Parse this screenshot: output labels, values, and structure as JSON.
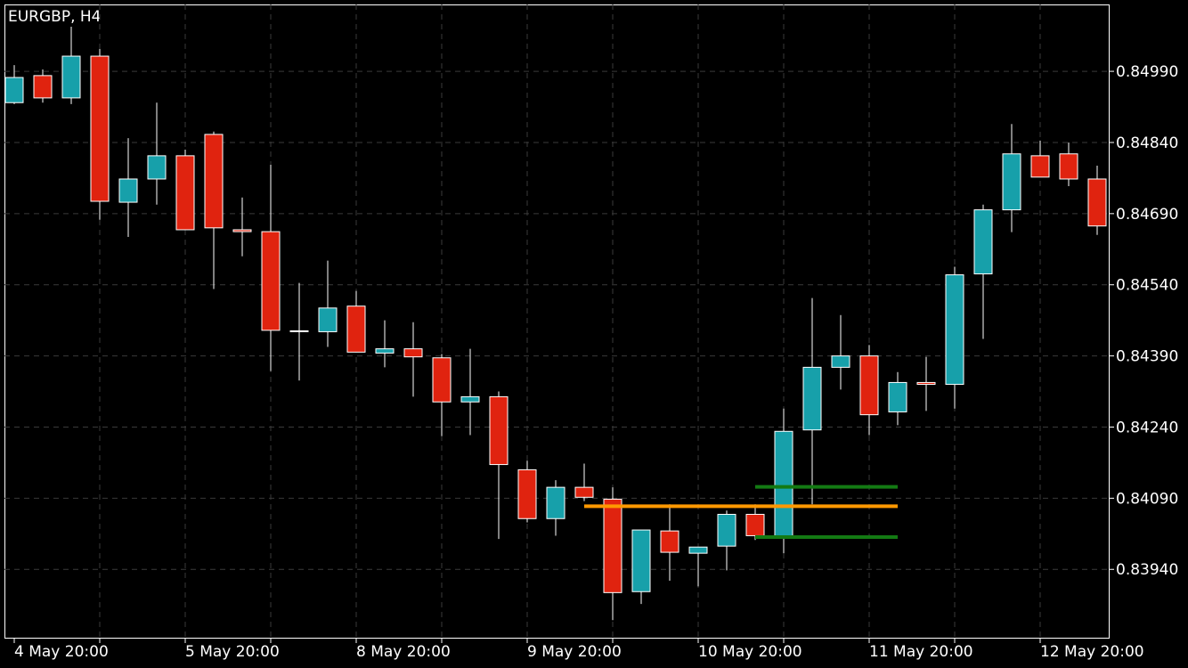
{
  "chart_data": {
    "type": "candlestick",
    "title": "EURGBP, H4",
    "categories": [
      "4 May 20:00",
      null,
      null,
      null,
      null,
      null,
      "5 May 20:00",
      null,
      null,
      null,
      null,
      null,
      "8 May 20:00",
      null,
      null,
      null,
      null,
      null,
      "9 May 20:00",
      null,
      null,
      null,
      null,
      null,
      "10 May 20:00",
      null,
      null,
      null,
      null,
      null,
      "11 May 20:00",
      null,
      null,
      null,
      null,
      null,
      "12 May 20:00",
      null,
      null
    ],
    "open": [
      0.84924,
      0.84981,
      0.84934,
      0.85022,
      0.84714,
      0.84763,
      0.84812,
      0.84857,
      0.84656,
      0.84652,
      0.84443,
      0.84441,
      0.84495,
      0.84396,
      0.84405,
      0.84386,
      0.84293,
      0.84304,
      0.8415,
      0.84047,
      0.84113,
      0.84088,
      0.83893,
      0.84021,
      0.83974,
      0.83989,
      0.84056,
      0.84009,
      0.84234,
      0.84366,
      0.8439,
      0.84272,
      0.84334,
      0.8433,
      0.84563,
      0.84698,
      0.84812,
      0.84816,
      0.84763
    ],
    "high": [
      0.85003,
      0.84994,
      0.85084,
      0.85037,
      0.84849,
      0.84924,
      0.84825,
      0.84863,
      0.84724,
      0.84793,
      0.84544,
      0.84591,
      0.84527,
      0.84465,
      0.84461,
      0.84394,
      0.84405,
      0.84315,
      0.84169,
      0.84128,
      0.84163,
      0.84113,
      0.84023,
      0.84077,
      0.83987,
      0.84064,
      0.84077,
      0.84279,
      0.84512,
      0.84476,
      0.84413,
      0.84356,
      0.84388,
      0.84578,
      0.84709,
      0.84879,
      0.84844,
      0.8484,
      0.84791
    ],
    "low": [
      0.84921,
      0.84924,
      0.84921,
      0.84677,
      0.84641,
      0.84709,
      0.84656,
      0.84531,
      0.846,
      0.84358,
      0.84338,
      0.84409,
      0.84398,
      0.84366,
      0.84304,
      0.84221,
      0.84223,
      0.84004,
      0.84039,
      0.84011,
      0.84084,
      0.83833,
      0.83867,
      0.83916,
      0.83904,
      0.83938,
      0.84002,
      0.83974,
      0.84077,
      0.84319,
      0.84223,
      0.84244,
      0.84274,
      0.84279,
      0.84426,
      0.84651,
      0.84767,
      0.84748,
      0.84645
    ],
    "close": [
      0.84977,
      0.84934,
      0.85022,
      0.84716,
      0.84763,
      0.84812,
      0.84656,
      0.8466,
      0.84652,
      0.84444,
      0.84442,
      0.84491,
      0.84398,
      0.84405,
      0.84388,
      0.84293,
      0.84304,
      0.84161,
      0.84047,
      0.84113,
      0.84092,
      0.83891,
      0.84023,
      0.83976,
      0.83987,
      0.84056,
      0.84011,
      0.84231,
      0.84366,
      0.8439,
      0.84266,
      0.84334,
      0.8433,
      0.84561,
      0.84698,
      0.84816,
      0.84767,
      0.84763,
      0.84664
    ],
    "up_color": "#17a0aa",
    "down_color": "#e0230f",
    "levels": [
      {
        "value": 0.84073,
        "color": "#ff9800",
        "from": 20,
        "to": 31
      },
      {
        "value": 0.84114,
        "color": "#137a13",
        "from": 26,
        "to": 31
      },
      {
        "value": 0.84008,
        "color": "#137a13",
        "from": 26,
        "to": 31
      }
    ],
    "ylim": [
      0.83794,
      0.85131
    ],
    "yticks": [
      {
        "value": 0.8394,
        "label": "0.83940"
      },
      {
        "value": 0.8409,
        "label": "0.84090"
      },
      {
        "value": 0.8424,
        "label": "0.84240"
      },
      {
        "value": 0.8439,
        "label": "0.84390"
      },
      {
        "value": 0.8454,
        "label": "0.84540"
      },
      {
        "value": 0.8469,
        "label": "0.84690"
      },
      {
        "value": 0.8484,
        "label": "0.84840"
      },
      {
        "value": 0.8499,
        "label": "0.84990"
      }
    ],
    "grid": true
  }
}
